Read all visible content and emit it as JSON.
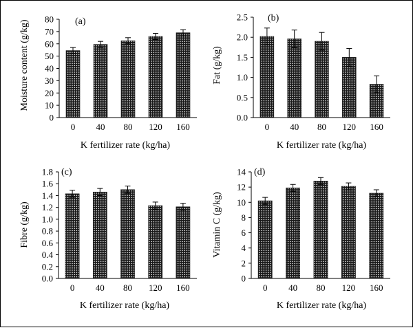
{
  "chart_data": [
    {
      "type": "bar",
      "panel_label": "(a)",
      "xlabel": "K fertilizer rate (kg/ha)",
      "ylabel": "Moisture content (g/kg)",
      "categories": [
        "0",
        "40",
        "80",
        "120",
        "160"
      ],
      "values": [
        54.5,
        59.5,
        62.5,
        66,
        69
      ],
      "errors": [
        2.5,
        2.5,
        2.5,
        2.5,
        2.5
      ],
      "ylim": [
        0,
        80
      ],
      "yticks": [
        "0",
        "10",
        "20",
        "30",
        "40",
        "50",
        "60",
        "70",
        "80"
      ]
    },
    {
      "type": "bar",
      "panel_label": "(b)",
      "xlabel": "K fertilizer rate (kg/ha)",
      "ylabel": "Fat (g/kg)",
      "categories": [
        "0",
        "40",
        "80",
        "120",
        "160"
      ],
      "values": [
        2.02,
        1.96,
        1.9,
        1.5,
        0.83
      ],
      "errors": [
        0.21,
        0.22,
        0.22,
        0.22,
        0.21
      ],
      "ylim": [
        0,
        2.5
      ],
      "yticks": [
        "0.0",
        "0.5",
        "1.0",
        "1.5",
        "2.0",
        "2.5"
      ]
    },
    {
      "type": "bar",
      "panel_label": "(c)",
      "xlabel": "K fertilizer rate (kg/ha)",
      "ylabel": "Fibre (g/kg)",
      "categories": [
        "0",
        "40",
        "80",
        "120",
        "160"
      ],
      "values": [
        1.43,
        1.46,
        1.5,
        1.23,
        1.21
      ],
      "errors": [
        0.06,
        0.06,
        0.06,
        0.06,
        0.06
      ],
      "ylim": [
        0,
        1.8
      ],
      "yticks": [
        "0.0",
        "0.2",
        "0.4",
        "0.6",
        "0.8",
        "1.0",
        "1.2",
        "1.4",
        "1.6",
        "1.8"
      ]
    },
    {
      "type": "bar",
      "panel_label": "(d)",
      "xlabel": "K fertilizer rate (kg/ha)",
      "ylabel": "Vitamin C (g/kg)",
      "categories": [
        "0",
        "40",
        "80",
        "120",
        "160"
      ],
      "values": [
        10.2,
        11.9,
        12.8,
        12.1,
        11.2
      ],
      "errors": [
        0.45,
        0.45,
        0.45,
        0.45,
        0.45
      ],
      "ylim": [
        0,
        14
      ],
      "yticks": [
        "0",
        "2",
        "4",
        "6",
        "8",
        "10",
        "12",
        "14"
      ]
    }
  ],
  "style": {
    "bar_fill": "#1a1a1a",
    "bar_dot": "#ffffff",
    "axis_color": "#000000"
  }
}
